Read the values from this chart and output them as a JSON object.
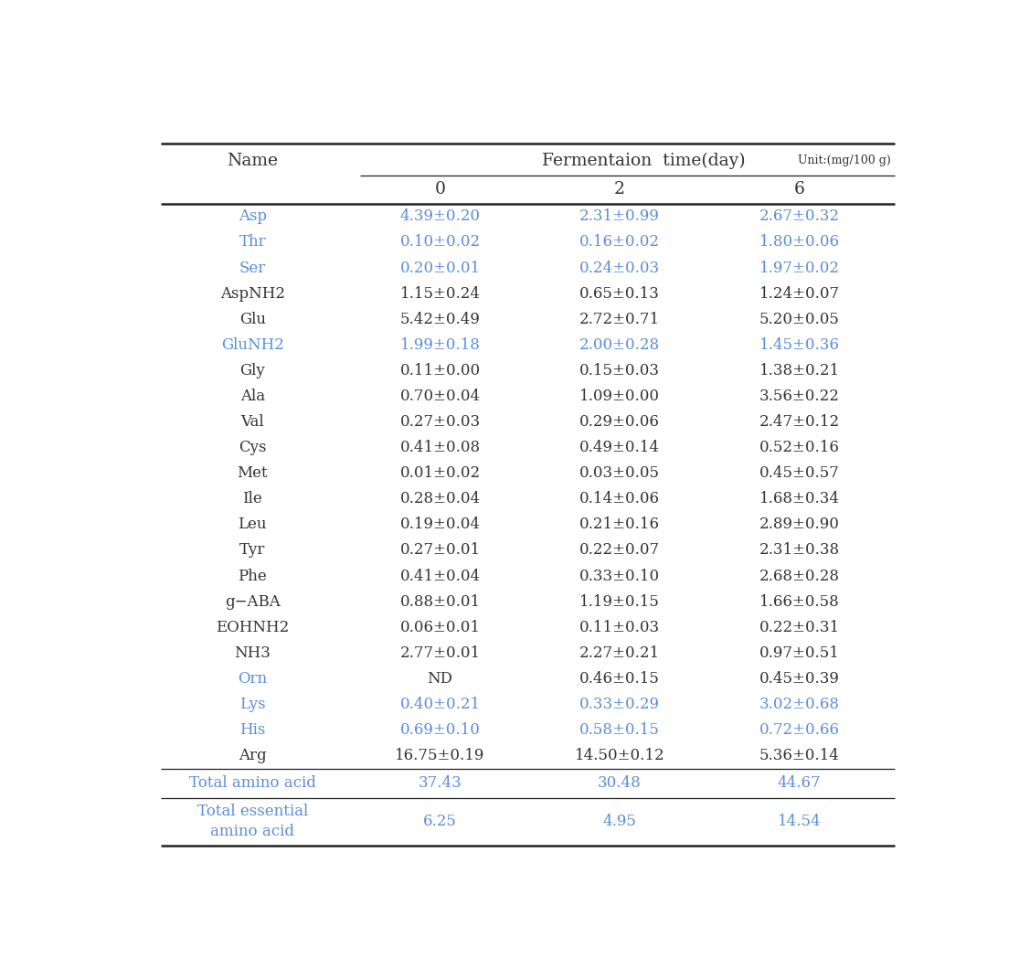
{
  "col_header_top": "Fermentaion  time(day)",
  "col_header_unit": "Unit:(mg/100 g)",
  "col_name": "Name",
  "col_days": [
    "0",
    "2",
    "6"
  ],
  "rows": [
    {
      "name": "Asp",
      "name_color": "#5b8dd9",
      "data_color": "#5b8dd9",
      "d0": "4.39±0.20",
      "d2": "2.31±0.99",
      "d6": "2.67±0.32"
    },
    {
      "name": "Thr",
      "name_color": "#5b8dd9",
      "data_color": "#5b8dd9",
      "d0": "0.10±0.02",
      "d2": "0.16±0.02",
      "d6": "1.80±0.06"
    },
    {
      "name": "Ser",
      "name_color": "#5b8dd9",
      "data_color": "#5b8dd9",
      "d0": "0.20±0.01",
      "d2": "0.24±0.03",
      "d6": "1.97±0.02"
    },
    {
      "name": "AspNH2",
      "name_color": "#333333",
      "data_color": "#333333",
      "d0": "1.15±0.24",
      "d2": "0.65±0.13",
      "d6": "1.24±0.07"
    },
    {
      "name": "Glu",
      "name_color": "#333333",
      "data_color": "#333333",
      "d0": "5.42±0.49",
      "d2": "2.72±0.71",
      "d6": "5.20±0.05"
    },
    {
      "name": "GluNH2",
      "name_color": "#5b8dd9",
      "data_color": "#5b8dd9",
      "d0": "1.99±0.18",
      "d2": "2.00±0.28",
      "d6": "1.45±0.36"
    },
    {
      "name": "Gly",
      "name_color": "#333333",
      "data_color": "#333333",
      "d0": "0.11±0.00",
      "d2": "0.15±0.03",
      "d6": "1.38±0.21"
    },
    {
      "name": "Ala",
      "name_color": "#333333",
      "data_color": "#333333",
      "d0": "0.70±0.04",
      "d2": "1.09±0.00",
      "d6": "3.56±0.22"
    },
    {
      "name": "Val",
      "name_color": "#333333",
      "data_color": "#333333",
      "d0": "0.27±0.03",
      "d2": "0.29±0.06",
      "d6": "2.47±0.12"
    },
    {
      "name": "Cys",
      "name_color": "#333333",
      "data_color": "#333333",
      "d0": "0.41±0.08",
      "d2": "0.49±0.14",
      "d6": "0.52±0.16"
    },
    {
      "name": "Met",
      "name_color": "#333333",
      "data_color": "#333333",
      "d0": "0.01±0.02",
      "d2": "0.03±0.05",
      "d6": "0.45±0.57"
    },
    {
      "name": "Ile",
      "name_color": "#333333",
      "data_color": "#333333",
      "d0": "0.28±0.04",
      "d2": "0.14±0.06",
      "d6": "1.68±0.34"
    },
    {
      "name": "Leu",
      "name_color": "#333333",
      "data_color": "#333333",
      "d0": "0.19±0.04",
      "d2": "0.21±0.16",
      "d6": "2.89±0.90"
    },
    {
      "name": "Tyr",
      "name_color": "#333333",
      "data_color": "#333333",
      "d0": "0.27±0.01",
      "d2": "0.22±0.07",
      "d6": "2.31±0.38"
    },
    {
      "name": "Phe",
      "name_color": "#333333",
      "data_color": "#333333",
      "d0": "0.41±0.04",
      "d2": "0.33±0.10",
      "d6": "2.68±0.28"
    },
    {
      "name": "g−ABA",
      "name_color": "#333333",
      "data_color": "#333333",
      "d0": "0.88±0.01",
      "d2": "1.19±0.15",
      "d6": "1.66±0.58"
    },
    {
      "name": "EOHNH2",
      "name_color": "#333333",
      "data_color": "#333333",
      "d0": "0.06±0.01",
      "d2": "0.11±0.03",
      "d6": "0.22±0.31"
    },
    {
      "name": "NH3",
      "name_color": "#333333",
      "data_color": "#333333",
      "d0": "2.77±0.01",
      "d2": "2.27±0.21",
      "d6": "0.97±0.51"
    },
    {
      "name": "Orn",
      "name_color": "#5b8dd9",
      "data_color": "#333333",
      "d0": "ND",
      "d2": "0.46±0.15",
      "d6": "0.45±0.39"
    },
    {
      "name": "Lys",
      "name_color": "#5b8dd9",
      "data_color": "#5b8dd9",
      "d0": "0.40±0.21",
      "d2": "0.33±0.29",
      "d6": "3.02±0.68"
    },
    {
      "name": "His",
      "name_color": "#5b8dd9",
      "data_color": "#5b8dd9",
      "d0": "0.69±0.10",
      "d2": "0.58±0.15",
      "d6": "0.72±0.66"
    },
    {
      "name": "Arg",
      "name_color": "#333333",
      "data_color": "#333333",
      "d0": "16.75±0.19",
      "d2": "14.50±0.12",
      "d6": "5.36±0.14"
    }
  ],
  "total_row": {
    "name": "Total amino acid",
    "color": "#5b8dd9",
    "d0": "37.43",
    "d2": "30.48",
    "d6": "44.67"
  },
  "essential_row": {
    "name": "Total essential\namino acid",
    "color": "#5b8dd9",
    "d0": "6.25",
    "d2": "4.95",
    "d6": "14.54"
  },
  "bg_color": "#ffffff",
  "text_color_dark": "#333333",
  "text_color_blue": "#5b8dd9",
  "line_color": "#222222",
  "fig_width": 11.27,
  "fig_height": 10.49,
  "dpi": 100
}
